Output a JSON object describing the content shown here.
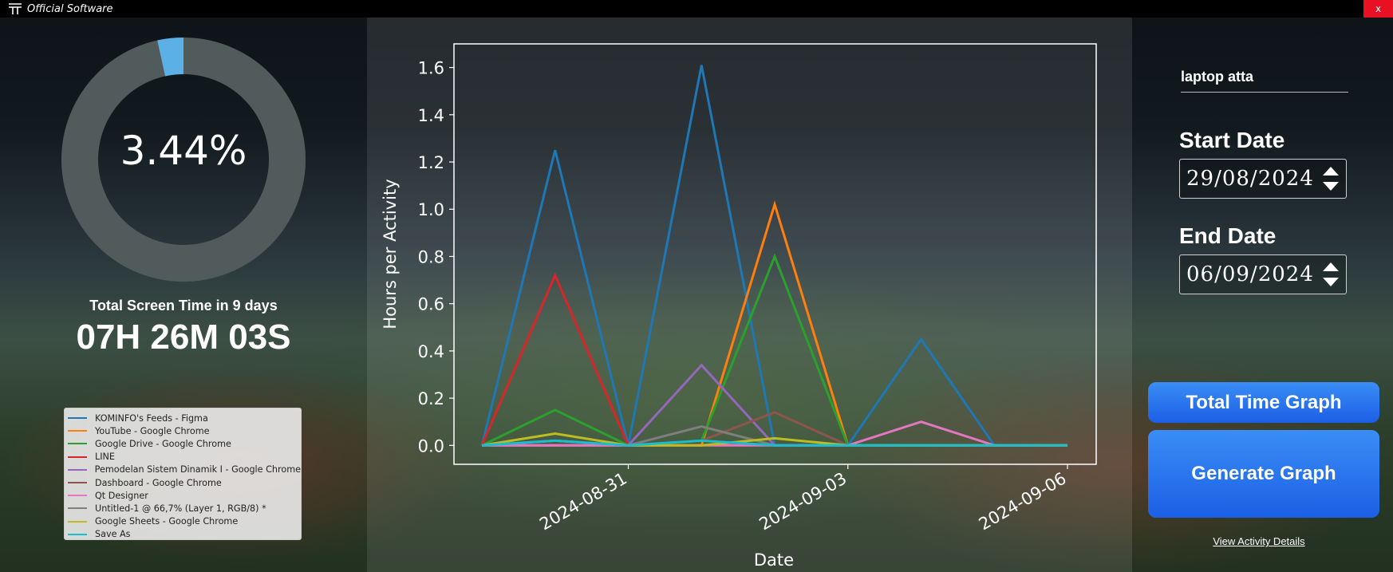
{
  "titlebar": {
    "title": "Official Software",
    "close_label": "x",
    "logo_icon": "app-logo-icon"
  },
  "summary": {
    "percent": "3.44%",
    "percent_value": 3.44,
    "total_label": "Total Screen Time in 9 days",
    "total_value": "07H 26M 03S",
    "colors": {
      "ring": "#525b5c",
      "segment": "#5bb0e6"
    }
  },
  "controls": {
    "device_name": "laptop atta",
    "start_label": "Start Date",
    "start_value": "29/08/2024",
    "end_label": "End Date",
    "end_value": "06/09/2024",
    "total_time_button": "Total Time Graph",
    "generate_button": "Generate Graph",
    "view_details_link": "View Activity Details"
  },
  "chart_data": {
    "type": "line",
    "xlabel": "Date",
    "ylabel": "Hours per Activity",
    "ylim": [
      -0.08,
      1.7
    ],
    "yticks": [
      0.0,
      0.2,
      0.4,
      0.6,
      0.8,
      1.0,
      1.2,
      1.4,
      1.6
    ],
    "ytick_labels": [
      "0.0",
      "0.2",
      "0.4",
      "0.6",
      "0.8",
      "1.0",
      "1.2",
      "1.4",
      "1.6"
    ],
    "xticks": [
      "2024-08-31",
      "2024-09-03",
      "2024-09-06"
    ],
    "x": [
      "2024-08-29",
      "2024-08-30",
      "2024-08-31",
      "2024-09-01",
      "2024-09-02",
      "2024-09-03",
      "2024-09-04",
      "2024-09-05",
      "2024-09-06"
    ],
    "grid": false,
    "legend_position": "outside-left",
    "series": [
      {
        "name": "KOMINFO's Feeds - Figma",
        "color": "#1f77b4",
        "values": [
          0,
          1.25,
          0,
          1.61,
          0,
          0,
          0.45,
          0,
          0
        ]
      },
      {
        "name": "YouTube - Google Chrome",
        "color": "#ff7f0e",
        "values": [
          0,
          0,
          0,
          0,
          1.02,
          0,
          0,
          0,
          0
        ]
      },
      {
        "name": "Google Drive - Google Chrome",
        "color": "#2ca02c",
        "values": [
          0,
          0.15,
          0,
          0.02,
          0.8,
          0,
          0,
          0,
          0
        ]
      },
      {
        "name": "LINE",
        "color": "#d62728",
        "values": [
          0,
          0.72,
          0,
          0,
          0,
          0,
          0,
          0,
          0
        ]
      },
      {
        "name": "Pemodelan Sistem Dinamik I - Google Chrome",
        "color": "#9467bd",
        "values": [
          0,
          0,
          0,
          0.34,
          0,
          0,
          0,
          0,
          0
        ]
      },
      {
        "name": "Dashboard - Google Chrome",
        "color": "#8c564b",
        "values": [
          0,
          0.02,
          0,
          0.02,
          0.14,
          0,
          0,
          0,
          0
        ]
      },
      {
        "name": "Qt Designer",
        "color": "#e377c2",
        "values": [
          0,
          0,
          0,
          0,
          0,
          0,
          0.1,
          0,
          0
        ]
      },
      {
        "name": "Untitled-1 @ 66,7% (Layer 1, RGB/8) *",
        "color": "#7f7f7f",
        "values": [
          0,
          0.02,
          0,
          0.08,
          0,
          0,
          0,
          0,
          0
        ]
      },
      {
        "name": "Google Sheets - Google Chrome",
        "color": "#bcbd22",
        "values": [
          0,
          0.05,
          0,
          0,
          0.03,
          0,
          0,
          0,
          0
        ]
      },
      {
        "name": "Save As",
        "color": "#17becf",
        "values": [
          0,
          0.02,
          0,
          0.02,
          0,
          0,
          0,
          0,
          0
        ]
      }
    ]
  }
}
